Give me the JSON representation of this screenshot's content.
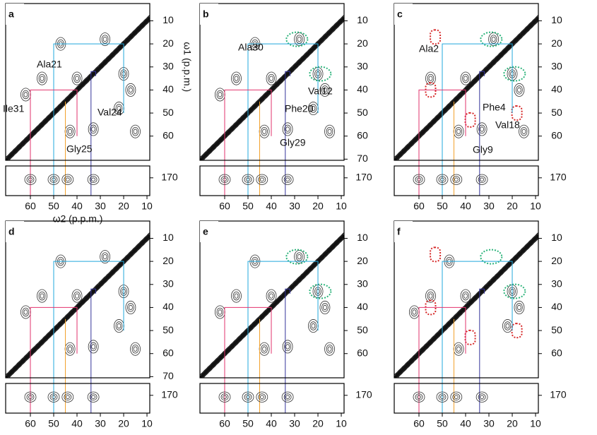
{
  "chart_data": [
    {
      "type": "nmr",
      "label": "a",
      "x_label": "ω2 (p.p.m.)",
      "y_label": "ω1 (p.p.m.)",
      "xlim": [
        70.6,
        8.8
      ],
      "ylim": [
        2.5,
        70.5
      ],
      "y2lim": [
        163,
        180.5
      ],
      "xticks": [
        60,
        50,
        40,
        30,
        20,
        10
      ],
      "yticks": [
        10,
        20,
        30,
        40,
        50,
        60
      ],
      "y2ticks": [
        170
      ],
      "annotations": [
        {
          "text": "Ala21",
          "color": "#22a8dc"
        },
        {
          "text": "Ile31",
          "color": "#e2336d"
        },
        {
          "text": "Val24",
          "color": "#34349a"
        },
        {
          "text": "Gly25",
          "color": "#f2a22e"
        }
      ]
    },
    {
      "type": "nmr",
      "label": "b",
      "xlim": [
        70.6,
        8.8
      ],
      "ylim": [
        2.5,
        70.5
      ],
      "y2lim": [
        163,
        180.5
      ],
      "xticks": [
        60,
        50,
        40,
        30,
        20,
        10
      ],
      "yticks": [
        10,
        20,
        30,
        40,
        50,
        60,
        70
      ],
      "y2ticks": [
        170
      ],
      "annotations": [
        {
          "text": "Ala30",
          "color": "#22a8dc"
        },
        {
          "text": "Val12",
          "color": "#34349a"
        },
        {
          "text": "Phe20",
          "color": "#1c9d70"
        },
        {
          "text": "Gly29",
          "color": "#f2a22e"
        }
      ]
    },
    {
      "type": "nmr",
      "label": "c",
      "xlim": [
        70.6,
        8.8
      ],
      "ylim": [
        2.5,
        70.5
      ],
      "y2lim": [
        163,
        180.5
      ],
      "xticks": [
        60,
        50,
        40,
        30,
        20,
        10
      ],
      "yticks": [
        10,
        20,
        30,
        40,
        50,
        60
      ],
      "y2ticks": [
        170
      ],
      "annotations": [
        {
          "text": "Ala2",
          "color": "#22a8dc"
        },
        {
          "text": "Phe4",
          "color": "#1c9d70"
        },
        {
          "text": "Val18",
          "color": "#34349a"
        },
        {
          "text": "Gly9",
          "color": "#f2a22e"
        }
      ]
    },
    {
      "type": "nmr",
      "label": "d",
      "xlim": [
        70.6,
        8.8
      ],
      "ylim": [
        2.5,
        70.5
      ],
      "y2lim": [
        163,
        180.5
      ],
      "xticks": [
        60,
        50,
        40,
        30,
        20,
        10
      ],
      "yticks": [
        10,
        20,
        30,
        40,
        50,
        60,
        70
      ],
      "y2ticks": [
        170
      ],
      "annotations": []
    },
    {
      "type": "nmr",
      "label": "e",
      "xlim": [
        70.6,
        8.8
      ],
      "ylim": [
        2.5,
        70.5
      ],
      "y2lim": [
        163,
        180.5
      ],
      "xticks": [
        60,
        50,
        40,
        30,
        20,
        10
      ],
      "yticks": [
        10,
        20,
        30,
        40,
        50,
        60
      ],
      "y2ticks": [
        170
      ],
      "annotations": []
    },
    {
      "type": "nmr",
      "label": "f",
      "xlim": [
        70.6,
        8.8
      ],
      "ylim": [
        2.5,
        70.5
      ],
      "y2lim": [
        163,
        180.5
      ],
      "xticks": [
        60,
        50,
        40,
        30,
        20,
        10
      ],
      "yticks": [
        10,
        20,
        30,
        40,
        50,
        60
      ],
      "y2ticks": [
        170
      ],
      "annotations": []
    }
  ]
}
